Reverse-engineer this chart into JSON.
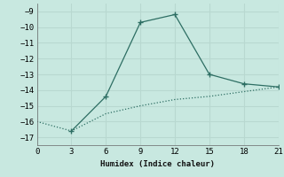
{
  "xlabel": "Humidex (Indice chaleur)",
  "line1_x": [
    3,
    6,
    9,
    12,
    15,
    18,
    21
  ],
  "line1_y": [
    -16.6,
    -14.4,
    -9.7,
    -9.2,
    -13.0,
    -13.6,
    -13.8
  ],
  "line2_x": [
    0,
    3,
    6,
    9,
    12,
    15,
    18,
    21
  ],
  "line2_y": [
    -16.0,
    -16.6,
    -15.5,
    -15.0,
    -14.6,
    -14.4,
    -14.1,
    -13.8
  ],
  "line_color": "#2d6e63",
  "bg_color": "#c8e8e0",
  "grid_color": "#b8d8d0",
  "xlim": [
    0,
    21
  ],
  "ylim": [
    -17.5,
    -8.5
  ],
  "xticks": [
    0,
    3,
    6,
    9,
    12,
    15,
    18,
    21
  ],
  "yticks": [
    -9,
    -10,
    -11,
    -12,
    -13,
    -14,
    -15,
    -16,
    -17
  ]
}
